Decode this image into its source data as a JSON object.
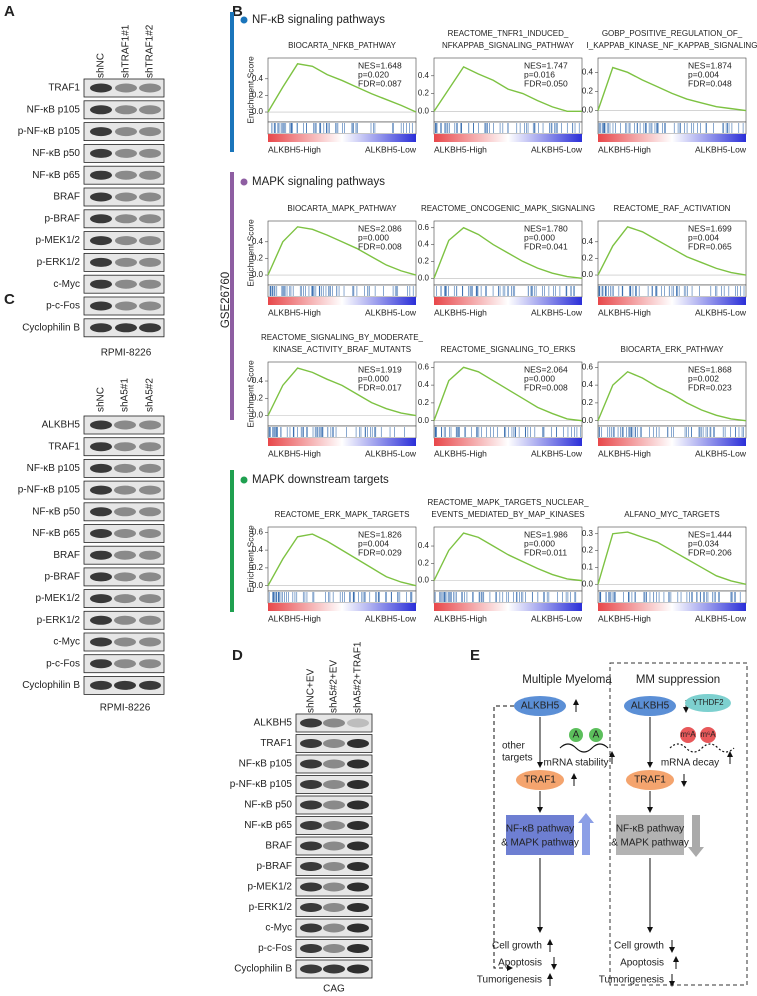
{
  "panel_labels": [
    "A",
    "B",
    "C",
    "D",
    "E"
  ],
  "panel_a": {
    "columns": [
      "shNC",
      "shTRAF1#1",
      "shTRAF1#2"
    ],
    "rows": [
      "TRAF1",
      "NF-κB p105",
      "p-NF-κB p105",
      "NF-κB p50",
      "NF-κB p65",
      "BRAF",
      "p-BRAF",
      "p-MEK1/2",
      "p-ERK1/2",
      "c-Myc",
      "p-c-Fos",
      "Cyclophilin B"
    ],
    "cell_line": "RPMI-8226"
  },
  "panel_b": {
    "dataset": "GSE26760",
    "y_label": "Enrichment Score",
    "left_label": "ALKBH5-High",
    "right_label": "ALKBH5-Low",
    "groups": [
      {
        "title": "NF-κB signaling pathways",
        "color": "#1a75bb",
        "plots": [
          {
            "title": [
              "BIOCARTA_NFKB_PATHWAY"
            ],
            "stats": [
              "NES=1.648",
              "p=0.020",
              "FDR=0.087"
            ],
            "ylim": [
              -0.12,
              0.65
            ],
            "yticks": [
              {
                "value": 0,
                "label": "0.0"
              },
              {
                "value": 0.2,
                "label": "0.2"
              },
              {
                "value": 0.4,
                "label": "0.4"
              }
            ],
            "curve": [
              0,
              0.3,
              0.58,
              0.55,
              0.45,
              0.38,
              0.3,
              0.22,
              0.15,
              0.08,
              0
            ]
          },
          {
            "title": [
              "REACTOME_TNFR1_INDUCED_",
              "NFKAPPAB_SIGNALING_PATHWAY"
            ],
            "stats": [
              "NES=1.747",
              "p=0.016",
              "FDR=0.050"
            ],
            "ylim": [
              -0.12,
              0.6
            ],
            "yticks": [
              {
                "value": 0,
                "label": "0.0"
              },
              {
                "value": 0.2,
                "label": "0.2"
              },
              {
                "value": 0.4,
                "label": "0.4"
              }
            ],
            "curve": [
              0,
              0.25,
              0.5,
              0.42,
              0.35,
              0.25,
              0.2,
              0.12,
              0.05,
              0,
              0
            ]
          },
          {
            "title": [
              "GOBP_POSITIVE_REGULATION_OF_",
              "I_KAPPAB_KINASE_NF_KAPPAB_SIGNALING"
            ],
            "stats": [
              "NES=1.874",
              "p=0.004",
              "FDR=0.048"
            ],
            "ylim": [
              -0.12,
              0.55
            ],
            "yticks": [
              {
                "value": 0,
                "label": "0.0"
              },
              {
                "value": 0.2,
                "label": "0.2"
              },
              {
                "value": 0.4,
                "label": "0.4"
              }
            ],
            "curve": [
              0,
              0.45,
              0.4,
              0.32,
              0.25,
              0.18,
              0.12,
              0.08,
              0.04,
              0.02,
              0
            ]
          }
        ]
      },
      {
        "title": "MAPK signaling pathways",
        "color": "#8e5ea2",
        "plots": [
          {
            "title": [
              "BIOCARTA_MAPK_PATHWAY"
            ],
            "stats": [
              "NES=2.086",
              "p=0.000",
              "FDR=0.008"
            ],
            "ylim": [
              -0.12,
              0.65
            ],
            "yticks": [
              {
                "value": 0,
                "label": "0.0"
              },
              {
                "value": 0.2,
                "label": "0.2"
              },
              {
                "value": 0.4,
                "label": "0.4"
              }
            ],
            "curve": [
              0,
              0.4,
              0.58,
              0.55,
              0.48,
              0.4,
              0.32,
              0.22,
              0.12,
              0.05,
              0
            ]
          },
          {
            "title": [
              "REACTOME_ONCOGENIC_MAPK_SIGNALING"
            ],
            "stats": [
              "NES=1.780",
              "p=0.000",
              "FDR=0.041"
            ],
            "ylim": [
              -0.08,
              0.68
            ],
            "yticks": [
              {
                "value": 0,
                "label": "0.0"
              },
              {
                "value": 0.2,
                "label": "0.2"
              },
              {
                "value": 0.4,
                "label": "0.4"
              },
              {
                "value": 0.6,
                "label": "0.6"
              }
            ],
            "curve": [
              0,
              0.45,
              0.6,
              0.52,
              0.4,
              0.3,
              0.2,
              0.12,
              0.06,
              0.02,
              0
            ]
          },
          {
            "title": [
              "REACTOME_RAF_ACTIVATION"
            ],
            "stats": [
              "NES=1.699",
              "p=0.004",
              "FDR=0.065"
            ],
            "ylim": [
              -0.12,
              0.65
            ],
            "yticks": [
              {
                "value": 0,
                "label": "0.0"
              },
              {
                "value": 0.2,
                "label": "0.2"
              },
              {
                "value": 0.4,
                "label": "0.4"
              }
            ],
            "curve": [
              0,
              0.35,
              0.58,
              0.52,
              0.42,
              0.32,
              0.22,
              0.15,
              0.08,
              0.03,
              0
            ]
          },
          {
            "title": [
              "REACTOME_SIGNALING_BY_MODERATE_",
              "KINASE_ACTIVITY_BRAF_MUTANTS"
            ],
            "stats": [
              "NES=1.919",
              "p=0.000",
              "FDR=0.017"
            ],
            "ylim": [
              -0.12,
              0.62
            ],
            "yticks": [
              {
                "value": 0,
                "label": "0.0"
              },
              {
                "value": 0.2,
                "label": "0.2"
              },
              {
                "value": 0.4,
                "label": "0.4"
              }
            ],
            "curve": [
              0,
              0.35,
              0.55,
              0.5,
              0.42,
              0.35,
              0.25,
              0.15,
              0.08,
              0.03,
              0
            ]
          },
          {
            "title": [
              "REACTOME_SIGNALING_TO_ERKS"
            ],
            "stats": [
              "NES=2.064",
              "p=0.000",
              "FDR=0.008"
            ],
            "ylim": [
              -0.06,
              0.66
            ],
            "yticks": [
              {
                "value": 0,
                "label": "0.0"
              },
              {
                "value": 0.2,
                "label": "0.2"
              },
              {
                "value": 0.4,
                "label": "0.4"
              },
              {
                "value": 0.6,
                "label": "0.6"
              }
            ],
            "curve": [
              0,
              0.45,
              0.6,
              0.55,
              0.45,
              0.35,
              0.25,
              0.15,
              0.08,
              0.02,
              0
            ]
          },
          {
            "title": [
              "BIOCARTA_ERK_PATHWAY"
            ],
            "stats": [
              "NES=1.868",
              "p=0.002",
              "FDR=0.023"
            ],
            "ylim": [
              -0.06,
              0.66
            ],
            "yticks": [
              {
                "value": 0,
                "label": "0.0"
              },
              {
                "value": 0.2,
                "label": "0.2"
              },
              {
                "value": 0.4,
                "label": "0.4"
              },
              {
                "value": 0.6,
                "label": "0.6"
              }
            ],
            "curve": [
              0,
              0.4,
              0.55,
              0.48,
              0.38,
              0.3,
              0.2,
              0.12,
              0.06,
              0.02,
              0
            ]
          }
        ]
      },
      {
        "title": "MAPK downstream targets",
        "color": "#1fa050",
        "plots": [
          {
            "title": [
              "REACTOME_ERK_MAPK_TARGETS"
            ],
            "stats": [
              "NES=1.826",
              "p=0.004",
              "FDR=0.029"
            ],
            "ylim": [
              -0.06,
              0.66
            ],
            "yticks": [
              {
                "value": 0,
                "label": "0.0"
              },
              {
                "value": 0.2,
                "label": "0.2"
              },
              {
                "value": 0.4,
                "label": "0.4"
              },
              {
                "value": 0.6,
                "label": "0.6"
              }
            ],
            "curve": [
              0,
              0.3,
              0.55,
              0.58,
              0.5,
              0.4,
              0.3,
              0.2,
              0.1,
              0.04,
              0
            ]
          },
          {
            "title": [
              "REACTOME_MAPK_TARGETS_NUCLEAR_",
              "EVENTS_MEDIATED_BY_MAP_KINASES"
            ],
            "stats": [
              "NES=1.986",
              "p=0.000",
              "FDR=0.011"
            ],
            "ylim": [
              -0.12,
              0.62
            ],
            "yticks": [
              {
                "value": 0,
                "label": "0.0"
              },
              {
                "value": 0.2,
                "label": "0.2"
              },
              {
                "value": 0.4,
                "label": "0.4"
              }
            ],
            "curve": [
              0,
              0.35,
              0.55,
              0.5,
              0.4,
              0.3,
              0.22,
              0.14,
              0.07,
              0.02,
              0
            ]
          },
          {
            "title": [
              "ALFANO_MYC_TARGETS"
            ],
            "stats": [
              "NES=1.444",
              "p=0.034",
              "FDR=0.206"
            ],
            "ylim": [
              -0.04,
              0.34
            ],
            "yticks": [
              {
                "value": 0,
                "label": "0.0"
              },
              {
                "value": 0.1,
                "label": "0.1"
              },
              {
                "value": 0.2,
                "label": "0.2"
              },
              {
                "value": 0.3,
                "label": "0.3"
              }
            ],
            "curve": [
              0,
              0.3,
              0.31,
              0.28,
              0.25,
              0.2,
              0.15,
              0.1,
              0.05,
              0.02,
              0
            ]
          }
        ]
      }
    ]
  },
  "panel_c": {
    "columns": [
      "shNC",
      "shA5#1",
      "shA5#2"
    ],
    "rows": [
      "ALKBH5",
      "TRAF1",
      "NF-κB p105",
      "p-NF-κB p105",
      "NF-κB p50",
      "NF-κB p65",
      "BRAF",
      "p-BRAF",
      "p-MEK1/2",
      "p-ERK1/2",
      "c-Myc",
      "p-c-Fos",
      "Cyclophilin B"
    ],
    "cell_line": "RPMI-8226"
  },
  "panel_d": {
    "columns": [
      "shNC+EV",
      "shA5#2+EV",
      "shA5#2+TRAF1"
    ],
    "rows": [
      "ALKBH5",
      "TRAF1",
      "NF-κB p105",
      "p-NF-κB p105",
      "NF-κB p50",
      "NF-κB p65",
      "BRAF",
      "p-BRAF",
      "p-MEK1/2",
      "p-ERK1/2",
      "c-Myc",
      "p-c-Fos",
      "Cyclophilin B"
    ],
    "cell_line": "CAG"
  },
  "panel_e": {
    "left_title": "Multiple Myeloma",
    "right_title": "MM suppression",
    "gene": "ALKBH5",
    "reader": "YTHDF2",
    "target": "TRAF1",
    "modification": "m⁶A",
    "base": "A",
    "other": [
      "other",
      "targets"
    ],
    "stability": "mRNA stability",
    "decay": "mRNA decay",
    "pathway": [
      "NF-κB pathway",
      "& MAPK pathway"
    ],
    "outcomes": [
      "Cell growth",
      "Apoptosis",
      "Tumorigenesis"
    ]
  }
}
